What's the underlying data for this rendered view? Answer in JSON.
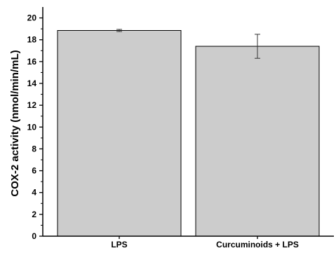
{
  "chart_data": {
    "type": "bar",
    "categories": [
      "LPS",
      "Curcuminoids + LPS"
    ],
    "values": [
      18.85,
      17.4
    ],
    "errors": [
      0.1,
      1.1
    ],
    "title": "",
    "xlabel": "",
    "ylabel": "COX-2 activity (nmol/min/mL)",
    "ylim": [
      0,
      21
    ],
    "yticks": [
      0,
      2,
      4,
      6,
      8,
      10,
      12,
      14,
      16,
      18,
      20
    ],
    "bar_color": "#cccccc",
    "grid": false,
    "legend": "none"
  }
}
